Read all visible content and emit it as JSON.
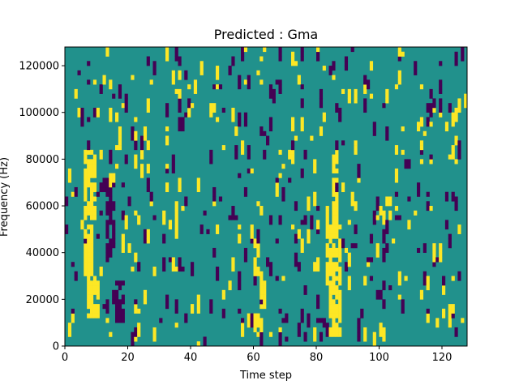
{
  "chart_data": {
    "type": "heatmap",
    "title": "Predicted : Gma",
    "xlabel": "Time step",
    "ylabel": "Frequency (Hz)",
    "xlim": [
      0,
      128
    ],
    "ylim": [
      0,
      128000
    ],
    "xticks": [
      0,
      20,
      40,
      60,
      80,
      100,
      120
    ],
    "yticks": [
      0,
      20000,
      40000,
      60000,
      80000,
      100000,
      120000
    ],
    "grid": false,
    "legend": "none",
    "n_time_steps": 128,
    "n_freq_bins": 64,
    "levels": [
      -1,
      0,
      1
    ],
    "colors": {
      "low": "#440154",
      "mid": "#21918c",
      "high": "#fde725"
    },
    "background_value": 0,
    "high_regions": [
      {
        "x": [
          6,
          10
        ],
        "y": [
          54000,
          84000
        ]
      },
      {
        "x": [
          6,
          9
        ],
        "y": [
          30000,
          52000
        ]
      },
      {
        "x": [
          7,
          11
        ],
        "y": [
          12000,
          30000
        ]
      },
      {
        "x": [
          83,
          88
        ],
        "y": [
          26000,
          52000
        ]
      },
      {
        "x": [
          84,
          88
        ],
        "y": [
          4000,
          26000
        ]
      },
      {
        "x": [
          85,
          87
        ],
        "y": [
          52000,
          84000
        ]
      },
      {
        "x": [
          60,
          63
        ],
        "y": [
          4000,
          14000
        ]
      },
      {
        "x": [
          60,
          62
        ],
        "y": [
          30000,
          46000
        ]
      },
      {
        "x": [
          62,
          64
        ],
        "y": [
          16000,
          30000
        ]
      }
    ],
    "low_regions": [
      {
        "x": [
          16,
          19
        ],
        "y": [
          10000,
          28000
        ]
      },
      {
        "x": [
          13,
          16
        ],
        "y": [
          40000,
          62000
        ]
      },
      {
        "x": [
          12,
          14
        ],
        "y": [
          66000,
          74000
        ]
      },
      {
        "x": [
          80,
          83
        ],
        "y": [
          8000,
          12000
        ]
      },
      {
        "x": [
          99,
          101
        ],
        "y": [
          20000,
          24000
        ]
      },
      {
        "x": [
          108,
          110
        ],
        "y": [
          76000,
          80000
        ]
      }
    ],
    "scattered": {
      "count": 520,
      "low_fraction": 0.5
    }
  }
}
